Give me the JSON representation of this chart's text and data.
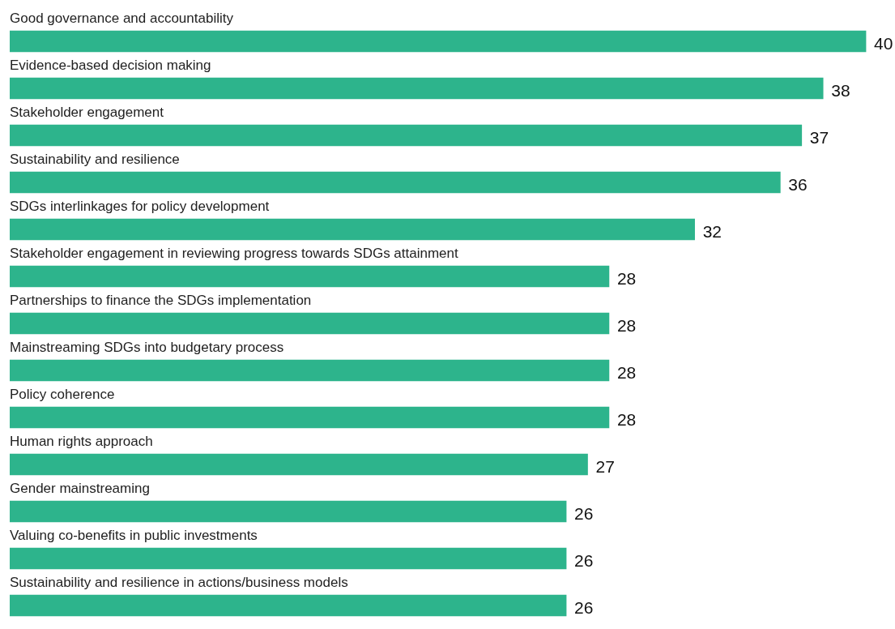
{
  "chart_data": {
    "type": "bar",
    "orientation": "horizontal",
    "categories": [
      "Good governance and accountability",
      "Evidence-based decision making",
      "Stakeholder engagement",
      "Sustainability and resilience",
      "SDGs interlinkages for policy development",
      "Stakeholder engagement in reviewing progress towards SDGs attainment",
      "Partnerships to finance the SDGs implementation",
      "Mainstreaming SDGs into budgetary process",
      "Policy coherence",
      "Human rights approach",
      "Gender mainstreaming",
      "Valuing co-benefits in public investments",
      "Sustainability and resilience in actions/business models"
    ],
    "values": [
      40,
      38,
      37,
      36,
      32,
      28,
      28,
      28,
      28,
      27,
      26,
      26,
      26
    ],
    "color": "#2db48c",
    "data_labels": true
  }
}
